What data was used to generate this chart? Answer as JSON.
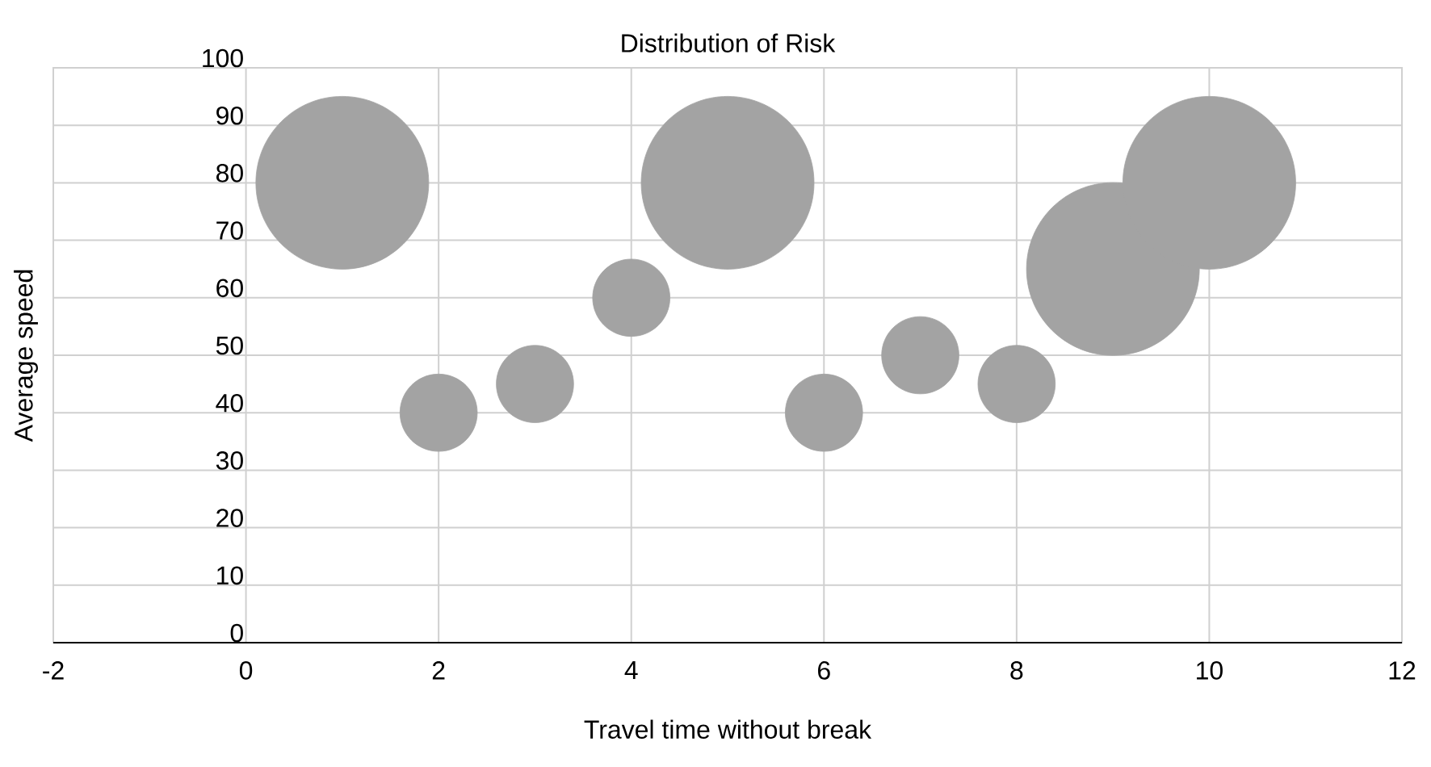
{
  "chart_data": {
    "type": "bubble",
    "title": "Distribution of Risk",
    "xlabel": "Travel time without break",
    "ylabel": "Average speed",
    "x": [
      1,
      2,
      3,
      4,
      5,
      6,
      7,
      8,
      9,
      10
    ],
    "values": [
      80,
      40,
      45,
      60,
      80,
      40,
      50,
      45,
      65,
      80
    ],
    "sizes": [
      1,
      0.2,
      0.2,
      0.2,
      1,
      0.2,
      0.2,
      0.2,
      1,
      1
    ],
    "color": "#a3a3a3",
    "xlim": [
      -2,
      12
    ],
    "ylim": [
      0,
      100
    ],
    "xticks": [
      -2,
      0,
      2,
      4,
      6,
      8,
      10,
      12
    ],
    "yticks": [
      0,
      10,
      20,
      30,
      40,
      50,
      60,
      70,
      80,
      90,
      100
    ],
    "grid": true
  }
}
